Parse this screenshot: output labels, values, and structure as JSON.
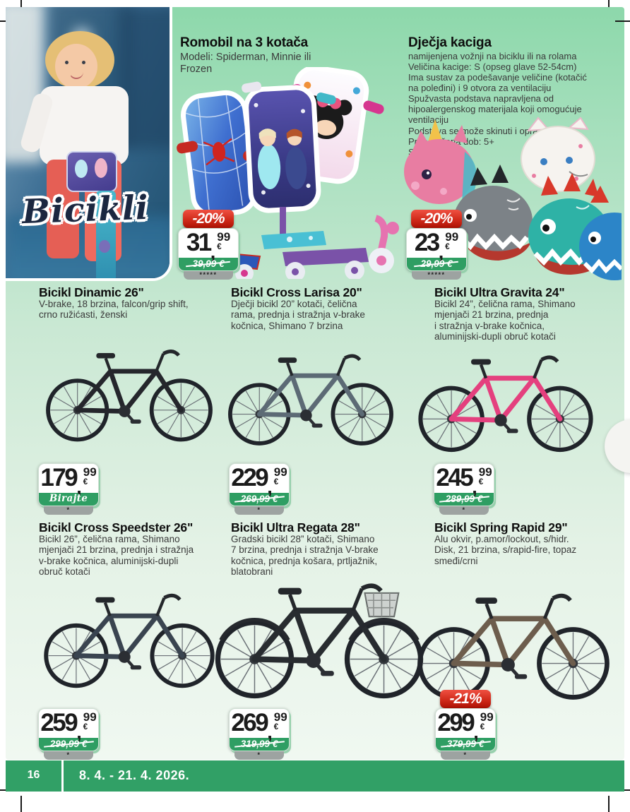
{
  "page": {
    "number": "16",
    "date_range": "8. 4. - 21. 4. 2026.",
    "category_label": "Bicikli"
  },
  "format": {
    "decimal_separator": ",",
    "currency": "€"
  },
  "featured": [
    {
      "title": "Romobil na 3 kotača",
      "description": "Modeli: Spiderman, Minnie ili\nFrozen",
      "discount": "-20%",
      "price_int": "31",
      "price_dec": "99",
      "old_price": "39,99 €",
      "footnote": "*****"
    },
    {
      "title": "Dječja kaciga",
      "description": "namijenjena vožnji na biciklu ili na rolama\nVeličina kacige: S (opseg glave 52-54cm)\nIma sustav za podešavanje veličine (kotačić\nna poleđini) i 9 otvora za ventilaciju\nSpužvasta podstava napravljena od\nhipoalergenskog materijala koji omogućuje ventilaciju\nPodstava se može skinuti i oprati\nPreporučena dob: 5+\nSort dezena",
      "discount": "-20%",
      "price_int": "23",
      "price_dec": "99",
      "old_price": "29,99 €",
      "footnote": "*****"
    }
  ],
  "products": [
    {
      "title": "Bicikl Dinamic 26\"",
      "description": "V-brake, 18 brzina, falcon/grip shift,\ncrno ružićasti, ženski",
      "price_int": "179",
      "price_dec": "99",
      "slogan": "Birajte mudro!",
      "footnote": "*"
    },
    {
      "title": "Bicikl Cross Larisa 20\"",
      "description": "Dječji bicikl 20” kotači, čelična\nrama, prednja i stražnja v-brake\nkočnica, Shimano 7 brzina",
      "price_int": "229",
      "price_dec": "99",
      "old_price": "269,99 €",
      "footnote": "*"
    },
    {
      "title": "Bicikl Ultra Gravita 24\"",
      "description": "Bicikl 24”, čelična rama, Shimano\nmjenjači 21 brzina, prednja\ni stražnja v-brake kočnica,\naluminijski-dupli obruč kotači",
      "price_int": "245",
      "price_dec": "99",
      "old_price": "289,99 €",
      "footnote": "*"
    },
    {
      "title": "Bicikl Cross Speedster 26\"",
      "description": "Bicikl 26”, čelična rama, Shimano\nmjenjači 21 brzina, prednja i stražnja\nv-brake kočnica, aluminijski-dupli\nobruč kotači",
      "price_int": "259",
      "price_dec": "99",
      "old_price": "299,99 €",
      "footnote": "*"
    },
    {
      "title": "Bicikl Ultra Regata 28\"",
      "description": "Gradski bicikl 28” kotači, Shimano\n7 brzina, prednja i stražnja V-brake\nkočnica, prednja košara, prtljažnik,\nblatobrani",
      "price_int": "269",
      "price_dec": "99",
      "old_price": "319,99 €",
      "footnote": "*"
    },
    {
      "title": "Bicikl Spring Rapid 29\"",
      "description": "Alu okvir, p.amor/lockout, s/hidr.\nDisk, 21 brzina, s/rapid-fire, topaz\nsmeđi/crni",
      "discount": "-21%",
      "price_int": "299",
      "price_dec": "99",
      "old_price": "379,99 €",
      "footnote": "*"
    }
  ],
  "colors": {
    "discount_red": "#d02a1a",
    "badge_green": "#2f9e63",
    "footer_green": "#31a066",
    "background_green": "#8dd8ab"
  }
}
